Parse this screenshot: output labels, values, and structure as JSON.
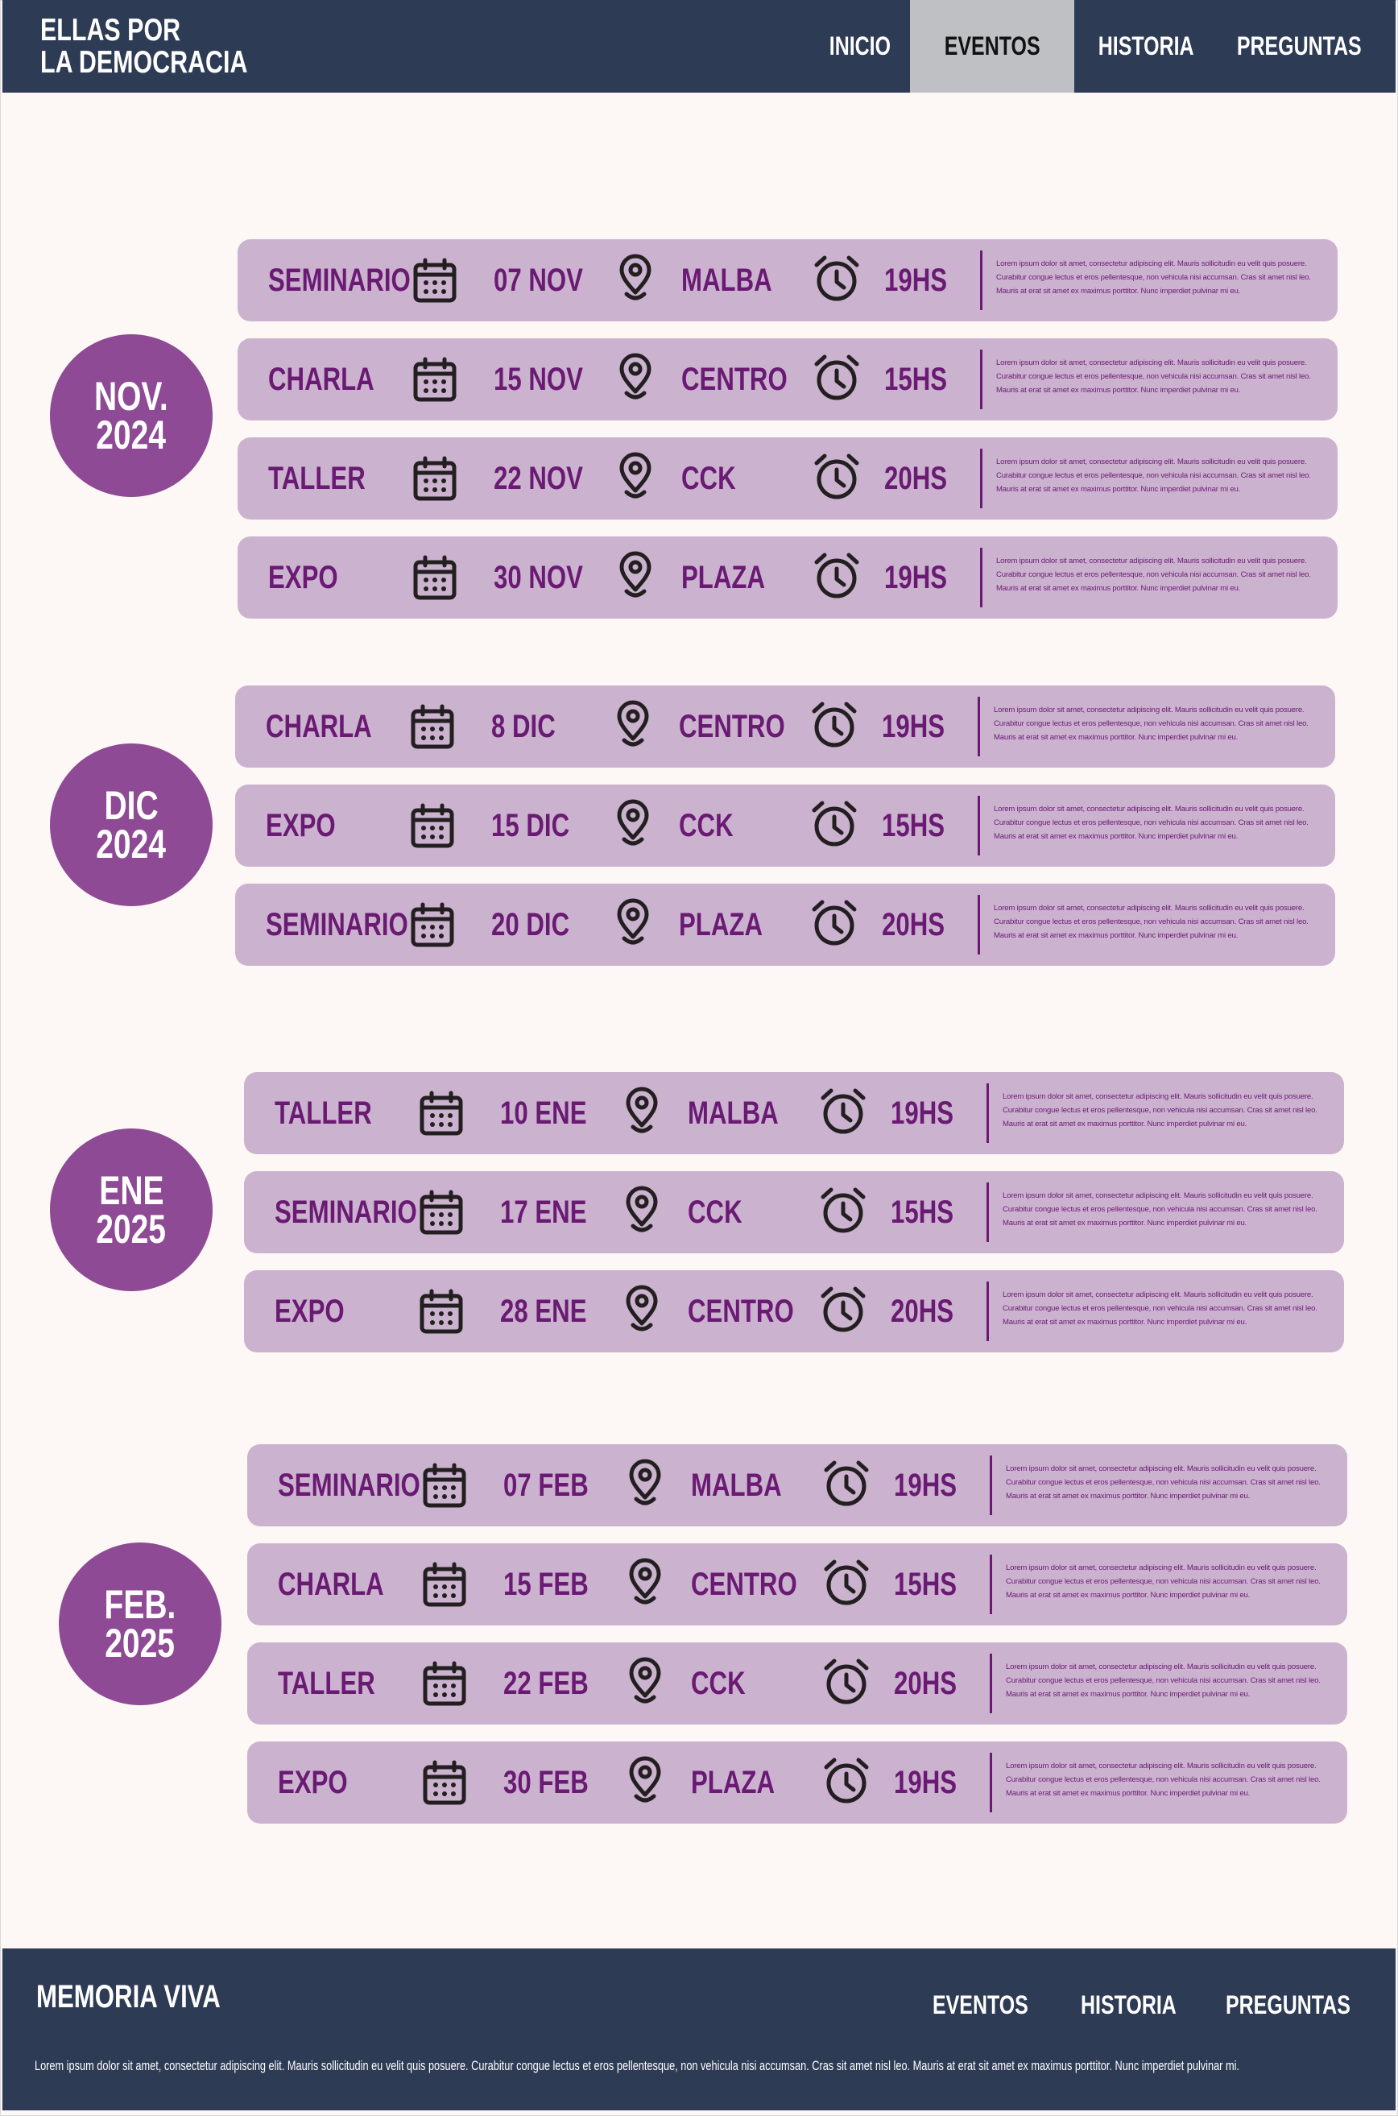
{
  "header": {
    "title_line1": "ELLAS POR",
    "title_line2": "LA DEMOCRACIA",
    "nav": [
      "INICIO",
      "EVENTOS",
      "HISTORIA",
      "PREGUNTAS"
    ]
  },
  "groups": [
    {
      "month": "NOV.",
      "year": "2024",
      "events": [
        {
          "type": "SEMINARIO",
          "date": "07 NOV",
          "place": "MALBA",
          "time": "19HS",
          "description": "Lorem ipsum dolor sit amet, consectetur adipiscing elit. Mauris sollicitudin eu velit quis posuere. Curabitur congue lectus et eros pellentesque, non vehicula nisi accumsan. Cras sit amet nisl leo. Mauris at erat sit amet ex maximus porttitor. Nunc imperdiet pulvinar mi eu."
        },
        {
          "type": "CHARLA",
          "date": "15 NOV",
          "place": "CENTRO",
          "time": "15HS",
          "description": "Lorem ipsum dolor sit amet, consectetur adipiscing elit. Mauris sollicitudin eu velit quis posuere. Curabitur congue lectus et eros pellentesque, non vehicula nisi accumsan. Cras sit amet nisl leo. Mauris at erat sit amet ex maximus porttitor. Nunc imperdiet pulvinar mi eu."
        },
        {
          "type": "TALLER",
          "date": "22 NOV",
          "place": "CCK",
          "time": "20HS",
          "description": "Lorem ipsum dolor sit amet, consectetur adipiscing elit. Mauris sollicitudin eu velit quis posuere. Curabitur congue lectus et eros pellentesque, non vehicula nisi accumsan. Cras sit amet nisl leo. Mauris at erat sit amet ex maximus porttitor. Nunc imperdiet pulvinar mi eu."
        },
        {
          "type": "EXPO",
          "date": "30 NOV",
          "place": "PLAZA",
          "time": "19HS",
          "description": "Lorem ipsum dolor sit amet, consectetur adipiscing elit. Mauris sollicitudin eu velit quis posuere. Curabitur congue lectus et eros pellentesque, non vehicula nisi accumsan. Cras sit amet nisl leo. Mauris at erat sit amet ex maximus porttitor. Nunc imperdiet pulvinar mi eu."
        }
      ]
    },
    {
      "month": "DIC",
      "year": "2024",
      "events": [
        {
          "type": "CHARLA",
          "date": "8 DIC",
          "place": "CENTRO",
          "time": "19HS",
          "description": "Lorem ipsum dolor sit amet, consectetur adipiscing elit. Mauris sollicitudin eu velit quis posuere. Curabitur congue lectus et eros pellentesque, non vehicula nisi accumsan. Cras sit amet nisl leo. Mauris at erat sit amet ex maximus porttitor. Nunc imperdiet pulvinar mi eu."
        },
        {
          "type": "EXPO",
          "date": "15 DIC",
          "place": "CCK",
          "time": "15HS",
          "description": "Lorem ipsum dolor sit amet, consectetur adipiscing elit. Mauris sollicitudin eu velit quis posuere. Curabitur congue lectus et eros pellentesque, non vehicula nisi accumsan. Cras sit amet nisl leo. Mauris at erat sit amet ex maximus porttitor. Nunc imperdiet pulvinar mi eu."
        },
        {
          "type": "SEMINARIO",
          "date": "20 DIC",
          "place": "PLAZA",
          "time": "20HS",
          "description": "Lorem ipsum dolor sit amet, consectetur adipiscing elit. Mauris sollicitudin eu velit quis posuere. Curabitur congue lectus et eros pellentesque, non vehicula nisi accumsan. Cras sit amet nisl leo. Mauris at erat sit amet ex maximus porttitor. Nunc imperdiet pulvinar mi eu."
        }
      ]
    },
    {
      "month": "ENE",
      "year": "2025",
      "events": [
        {
          "type": "TALLER",
          "date": "10 ENE",
          "place": "MALBA",
          "time": "19HS",
          "description": "Lorem ipsum dolor sit amet, consectetur adipiscing elit. Mauris sollicitudin eu velit quis posuere. Curabitur congue lectus et eros pellentesque, non vehicula nisi accumsan. Cras sit amet nisl leo. Mauris at erat sit amet ex maximus porttitor. Nunc imperdiet pulvinar mi eu."
        },
        {
          "type": "SEMINARIO",
          "date": "17 ENE",
          "place": "CCK",
          "time": "15HS",
          "description": "Lorem ipsum dolor sit amet, consectetur adipiscing elit. Mauris sollicitudin eu velit quis posuere. Curabitur congue lectus et eros pellentesque, non vehicula nisi accumsan. Cras sit amet nisl leo. Mauris at erat sit amet ex maximus porttitor. Nunc imperdiet pulvinar mi eu."
        },
        {
          "type": "EXPO",
          "date": "28 ENE",
          "place": "CENTRO",
          "time": "20HS",
          "description": "Lorem ipsum dolor sit amet, consectetur adipiscing elit. Mauris sollicitudin eu velit quis posuere. Curabitur congue lectus et eros pellentesque, non vehicula nisi accumsan. Cras sit amet nisl leo. Mauris at erat sit amet ex maximus porttitor. Nunc imperdiet pulvinar mi eu."
        }
      ]
    },
    {
      "month": "FEB.",
      "year": "2025",
      "events": [
        {
          "type": "SEMINARIO",
          "date": "07 FEB",
          "place": "MALBA",
          "time": "19HS",
          "description": "Lorem ipsum dolor sit amet, consectetur adipiscing elit. Mauris sollicitudin eu velit quis posuere. Curabitur congue lectus et eros pellentesque, non vehicula nisi accumsan. Cras sit amet nisl leo. Mauris at erat sit amet ex maximus porttitor. Nunc imperdiet pulvinar mi eu."
        },
        {
          "type": "CHARLA",
          "date": "15 FEB",
          "place": "CENTRO",
          "time": "15HS",
          "description": "Lorem ipsum dolor sit amet, consectetur adipiscing elit. Mauris sollicitudin eu velit quis posuere. Curabitur congue lectus et eros pellentesque, non vehicula nisi accumsan. Cras sit amet nisl leo. Mauris at erat sit amet ex maximus porttitor. Nunc imperdiet pulvinar mi eu."
        },
        {
          "type": "TALLER",
          "date": "22 FEB",
          "place": "CCK",
          "time": "20HS",
          "description": "Lorem ipsum dolor sit amet, consectetur adipiscing elit. Mauris sollicitudin eu velit quis posuere. Curabitur congue lectus et eros pellentesque, non vehicula nisi accumsan. Cras sit amet nisl leo. Mauris at erat sit amet ex maximus porttitor. Nunc imperdiet pulvinar mi eu."
        },
        {
          "type": "EXPO",
          "date": "30 FEB",
          "place": "PLAZA",
          "time": "19HS",
          "description": "Lorem ipsum dolor sit amet, consectetur adipiscing elit. Mauris sollicitudin eu velit quis posuere. Curabitur congue lectus et eros pellentesque, non vehicula nisi accumsan. Cras sit amet nisl leo. Mauris at erat sit amet ex maximus porttitor. Nunc imperdiet pulvinar mi eu."
        }
      ]
    }
  ],
  "footer": {
    "title": "MEMORIA VIVA",
    "links": [
      "EVENTOS",
      "HISTORIA",
      "PREGUNTAS"
    ],
    "text": "Lorem ipsum dolor sit amet, consectetur adipiscing elit. Mauris sollicitudin eu velit quis posuere. Curabitur congue lectus et eros pellentesque, non vehicula nisi accumsan. Cras sit amet nisl leo. Mauris at erat sit amet ex maximus porttitor. Nunc imperdiet pulvinar mi."
  }
}
